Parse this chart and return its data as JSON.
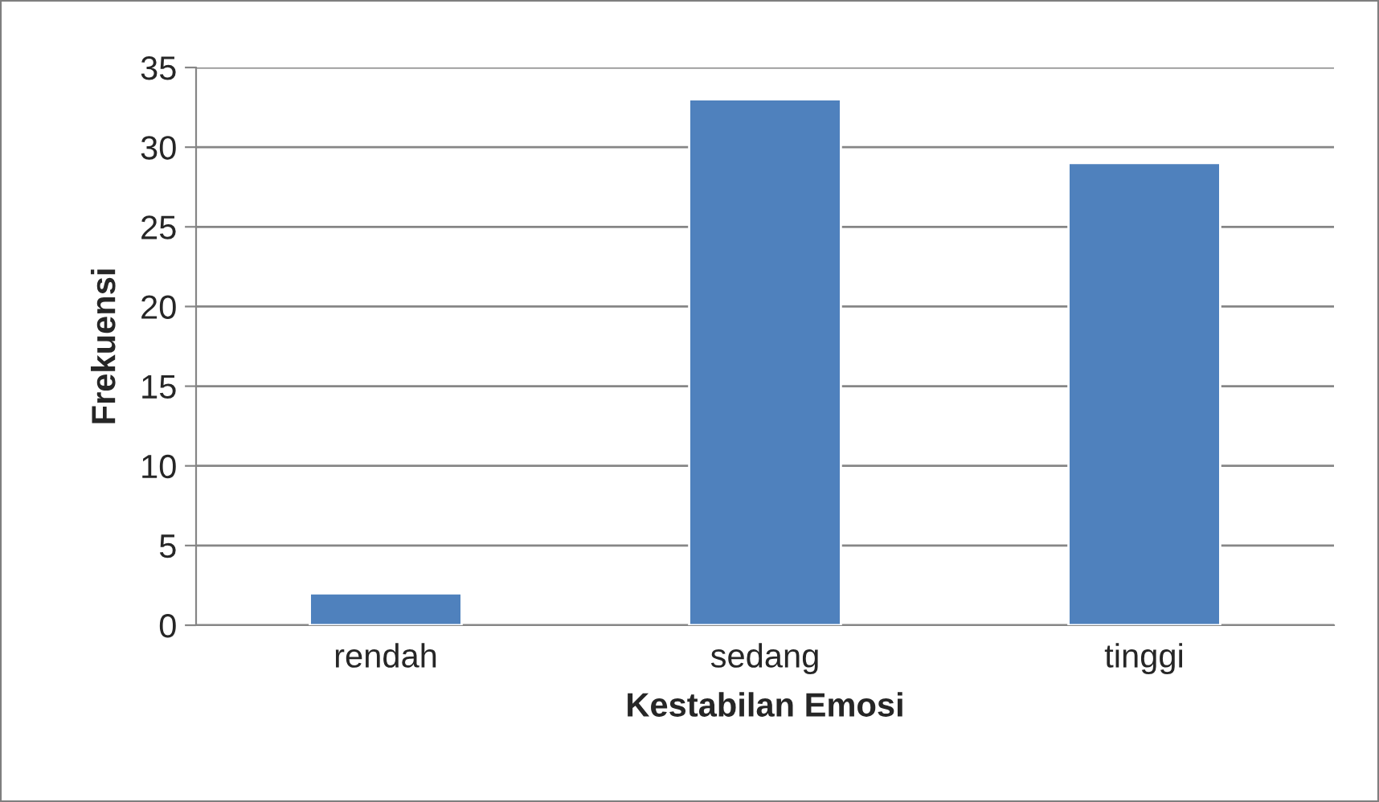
{
  "chart_data": {
    "type": "bar",
    "xlabel": "Kestabilan Emosi",
    "ylabel": "Frekuensi",
    "categories": [
      "rendah",
      "sedang",
      "tinggi"
    ],
    "values": [
      2,
      33,
      29
    ],
    "color": "#4f81bd",
    "ylim": [
      0,
      35
    ],
    "yticks": [
      0,
      5,
      10,
      15,
      20,
      25,
      30,
      35
    ],
    "grid": "y"
  }
}
